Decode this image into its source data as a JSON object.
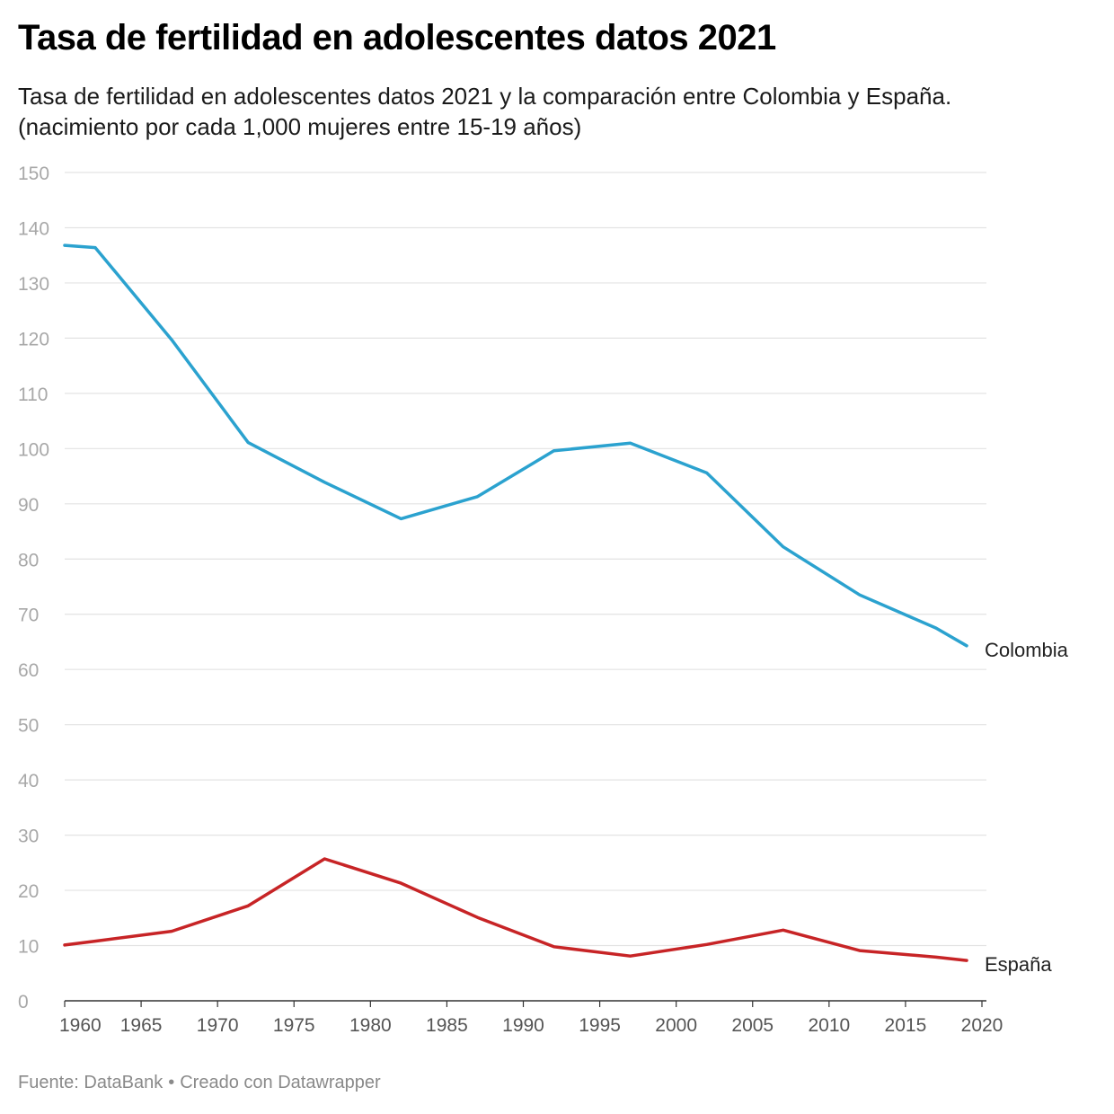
{
  "header": {
    "title": "Tasa de fertilidad en adolescentes datos 2021",
    "subtitle_line1": "Tasa de fertilidad en adolescentes datos 2021 y la comparación entre Colombia y España.",
    "subtitle_line2": "(nacimiento por cada 1,000 mujeres entre 15-19 años)"
  },
  "footer": {
    "source": "Fuente: DataBank",
    "separator": "•",
    "credit": "Creado con Datawrapper"
  },
  "colors": {
    "colombia": "#2ba2cf",
    "espana": "#c72426",
    "grid": "#e3e3e3",
    "tick_label": "#a8a8a8",
    "x_tick_label": "#555555"
  },
  "chart_data": {
    "type": "line",
    "title": "Tasa de fertilidad en adolescentes datos 2021",
    "xlabel": "",
    "ylabel": "",
    "xlim": [
      1960,
      2020
    ],
    "ylim": [
      0,
      150
    ],
    "x_ticks": [
      1960,
      1965,
      1970,
      1975,
      1980,
      1985,
      1990,
      1995,
      2000,
      2005,
      2010,
      2015,
      2020
    ],
    "y_ticks": [
      0,
      10,
      20,
      30,
      40,
      50,
      60,
      70,
      80,
      90,
      100,
      110,
      120,
      130,
      140,
      150
    ],
    "grid": true,
    "legend": "direct labels at line ends",
    "series": [
      {
        "name": "Colombia",
        "color": "#2ba2cf",
        "x": [
          1960,
          1962,
          1967,
          1972,
          1977,
          1982,
          1987,
          1992,
          1997,
          2002,
          2007,
          2012,
          2017,
          2019
        ],
        "values": [
          136.8,
          136.4,
          119.7,
          101.1,
          93.9,
          87.3,
          91.3,
          99.6,
          101.0,
          95.6,
          82.2,
          73.5,
          67.5,
          64.3
        ]
      },
      {
        "name": "España",
        "color": "#c72426",
        "x": [
          1960,
          1962,
          1967,
          1972,
          1977,
          1982,
          1987,
          1992,
          1997,
          2002,
          2007,
          2012,
          2017,
          2019
        ],
        "values": [
          10.1,
          10.8,
          12.6,
          17.2,
          25.7,
          21.3,
          15.1,
          9.8,
          8.1,
          10.2,
          12.8,
          9.1,
          7.9,
          7.3
        ]
      }
    ]
  }
}
